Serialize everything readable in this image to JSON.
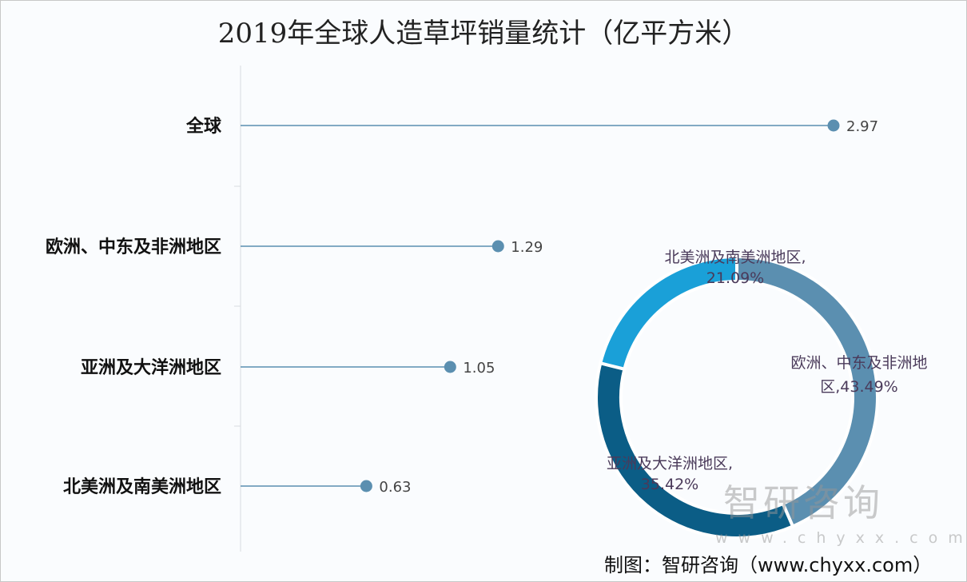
{
  "chart_data": [
    {
      "type": "bar",
      "style": "lollipop-horizontal",
      "title": "2019年全球人造草坪销量统计（亿平方米）",
      "categories": [
        "全球",
        "欧洲、中东及非洲地区",
        "亚洲及大洋洲地区",
        "北美洲及南美洲地区"
      ],
      "values": [
        2.97,
        1.29,
        1.05,
        0.63
      ],
      "value_labels": [
        "2.97",
        "1.29",
        "1.05",
        "0.63"
      ],
      "xlim": [
        0,
        2.97
      ],
      "grid": false,
      "color": "#5b8fb0"
    },
    {
      "type": "pie",
      "style": "donut",
      "categories": [
        "欧洲、中东及非洲地区",
        "亚洲及大洋洲地区",
        "北美洲及南美洲地区"
      ],
      "values": [
        43.49,
        35.42,
        21.09
      ],
      "labels": [
        "欧洲、中东及非洲地区, 43.49%",
        "亚洲及大洋洲地区, 35.42%",
        "北美洲及南美洲地区, 21.09%"
      ],
      "colors": [
        "#5b8fb0",
        "#0b5d86",
        "#1aa0d8"
      ]
    }
  ],
  "watermark": {
    "logo": "智研咨询",
    "url": "www.chyxx.com"
  },
  "source": "制图：智研咨询（www.chyxx.com）"
}
